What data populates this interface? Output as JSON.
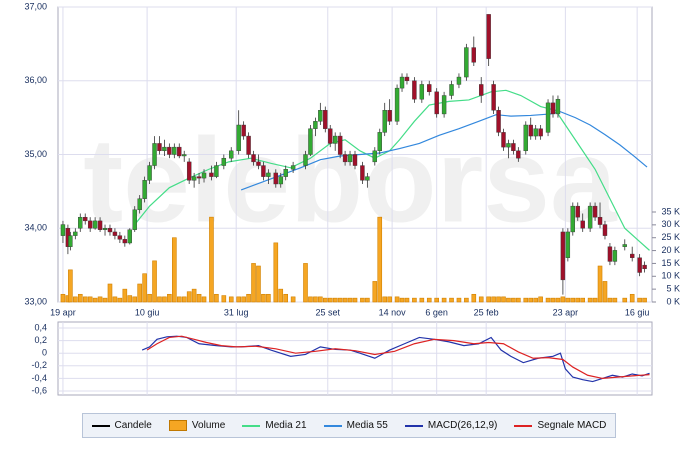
{
  "chart_data": {
    "type": "candlestick",
    "watermark": "teleborsa",
    "xlim": [
      0,
      240
    ],
    "xticks": [
      {
        "value": 2,
        "label": "19 apr"
      },
      {
        "value": 36,
        "label": "10 giu"
      },
      {
        "value": 72,
        "label": "31 lug"
      },
      {
        "value": 109,
        "label": "25 set"
      },
      {
        "value": 135,
        "label": "14 nov"
      },
      {
        "value": 153,
        "label": "6 gen"
      },
      {
        "value": 173,
        "label": "25 feb"
      },
      {
        "value": 205,
        "label": "23 apr"
      },
      {
        "value": 234,
        "label": "16 giu"
      }
    ],
    "ylim": [
      33,
      37
    ],
    "yticks": [
      {
        "value": 33,
        "label": "33,00"
      },
      {
        "value": 34,
        "label": "34,00"
      },
      {
        "value": 35,
        "label": "35,00"
      },
      {
        "value": 36,
        "label": "36,00"
      },
      {
        "value": 37,
        "label": "37,00"
      }
    ],
    "y2lim": [
      0,
      35000
    ],
    "y2ticks": [
      {
        "value": 0,
        "label": "0 K"
      },
      {
        "value": 5000,
        "label": "5 K"
      },
      {
        "value": 10000,
        "label": "10 K"
      },
      {
        "value": 15000,
        "label": "15 K"
      },
      {
        "value": 20000,
        "label": "20 K"
      },
      {
        "value": 25000,
        "label": "25 K"
      },
      {
        "value": 30000,
        "label": "30 K"
      },
      {
        "value": 35000,
        "label": "35 K"
      }
    ],
    "grid": true,
    "candles": {
      "name": "Candele",
      "up_color": "#33aa33",
      "down_color": "#a0102a",
      "x": [
        2,
        4,
        5,
        7,
        9,
        11,
        13,
        15,
        17,
        19,
        21,
        23,
        25,
        27,
        29,
        31,
        33,
        35,
        37,
        39,
        41,
        43,
        45,
        47,
        49,
        51,
        53,
        55,
        57,
        59,
        62,
        64,
        67,
        70,
        73,
        75,
        77,
        79,
        81,
        83,
        85,
        88,
        90,
        92,
        95,
        100,
        102,
        104,
        106,
        108,
        110,
        112,
        114,
        116,
        118,
        120,
        123,
        125,
        128,
        130,
        132,
        134,
        137,
        139,
        141,
        144,
        147,
        150,
        153,
        156,
        159,
        162,
        165,
        168,
        171,
        174,
        176,
        178,
        180,
        182,
        184,
        186,
        189,
        191,
        193,
        195,
        198,
        200,
        202,
        204,
        206,
        208,
        210,
        212,
        215,
        217,
        219,
        221,
        223,
        225,
        229,
        232,
        235,
        237
      ],
      "open": [
        33.9,
        34.0,
        33.75,
        33.9,
        34.0,
        34.15,
        34.1,
        34.0,
        34.1,
        33.98,
        34.0,
        33.95,
        33.9,
        33.85,
        33.8,
        33.98,
        34.25,
        34.4,
        34.65,
        34.85,
        35.15,
        35.05,
        35.1,
        35.0,
        35.1,
        34.98,
        34.9,
        34.65,
        34.7,
        34.68,
        34.75,
        34.7,
        34.85,
        34.95,
        35.05,
        35.4,
        35.25,
        35.0,
        34.9,
        34.85,
        34.7,
        34.75,
        34.6,
        34.7,
        34.8,
        34.85,
        35.0,
        35.35,
        35.45,
        35.6,
        35.35,
        35.15,
        35.25,
        35.0,
        34.9,
        35.0,
        34.85,
        34.65,
        34.9,
        35.05,
        35.3,
        35.6,
        35.45,
        35.9,
        36.05,
        36.0,
        35.75,
        35.95,
        35.85,
        35.55,
        35.8,
        35.95,
        36.05,
        36.45,
        35.95,
        36.9,
        35.95,
        35.6,
        35.3,
        35.1,
        35.15,
        35.05,
        35.05,
        35.4,
        35.25,
        35.35,
        35.3,
        35.7,
        35.55,
        33.95,
        33.6,
        33.95,
        34.3,
        34.1,
        34.0,
        34.3,
        34.15,
        34.05,
        33.75,
        33.55,
        33.75,
        33.65,
        33.6,
        33.5
      ],
      "high": [
        34.1,
        34.05,
        33.95,
        34.0,
        34.2,
        34.2,
        34.15,
        34.15,
        34.15,
        34.05,
        34.05,
        34.0,
        33.95,
        33.9,
        34.0,
        34.3,
        34.45,
        34.7,
        34.9,
        35.25,
        35.25,
        35.2,
        35.15,
        35.15,
        35.15,
        35.05,
        34.95,
        34.75,
        34.75,
        34.8,
        34.85,
        34.9,
        35.0,
        35.1,
        35.6,
        35.45,
        35.3,
        35.05,
        35.0,
        34.9,
        34.8,
        34.8,
        34.75,
        34.85,
        34.9,
        35.05,
        35.4,
        35.5,
        35.7,
        35.65,
        35.4,
        35.3,
        35.3,
        35.05,
        35.05,
        35.05,
        34.9,
        34.75,
        35.1,
        35.35,
        35.7,
        35.75,
        35.95,
        36.1,
        36.1,
        36.05,
        36.0,
        36.0,
        35.9,
        35.85,
        36.0,
        36.1,
        36.5,
        36.6,
        36.05,
        36.9,
        36.0,
        35.65,
        35.35,
        35.2,
        35.2,
        35.1,
        35.45,
        35.5,
        35.4,
        35.4,
        35.75,
        35.8,
        35.8,
        34.0,
        34.0,
        34.35,
        34.35,
        34.2,
        34.35,
        34.35,
        34.35,
        34.1,
        33.8,
        33.75,
        33.85,
        33.75,
        33.65,
        33.55
      ],
      "low": [
        33.8,
        33.65,
        33.7,
        33.85,
        33.95,
        34.05,
        33.95,
        33.98,
        33.95,
        33.9,
        33.9,
        33.85,
        33.8,
        33.75,
        33.78,
        33.95,
        34.2,
        34.35,
        34.6,
        34.8,
        35.0,
        34.98,
        34.95,
        34.95,
        34.95,
        34.9,
        34.6,
        34.55,
        34.6,
        34.62,
        34.65,
        34.68,
        34.8,
        34.9,
        35.0,
        35.2,
        34.95,
        34.85,
        34.8,
        34.65,
        34.6,
        34.55,
        34.55,
        34.65,
        34.75,
        34.8,
        34.98,
        35.25,
        35.4,
        35.3,
        35.1,
        35.05,
        34.95,
        34.85,
        34.85,
        34.8,
        34.6,
        34.55,
        34.85,
        35.0,
        35.25,
        35.4,
        35.4,
        35.85,
        35.95,
        35.7,
        35.7,
        35.8,
        35.5,
        35.5,
        35.75,
        35.9,
        36.0,
        36.2,
        35.7,
        36.2,
        35.55,
        35.25,
        35.05,
        34.95,
        35.0,
        34.9,
        35.0,
        35.2,
        35.2,
        35.2,
        35.25,
        35.5,
        35.5,
        33.1,
        33.55,
        33.9,
        34.1,
        33.95,
        33.95,
        34.1,
        34.0,
        33.85,
        33.5,
        33.5,
        33.7,
        33.55,
        33.35,
        33.4
      ],
      "close": [
        34.05,
        33.75,
        33.9,
        33.95,
        34.15,
        34.1,
        34.0,
        34.1,
        33.98,
        34.0,
        33.95,
        33.9,
        33.85,
        33.8,
        33.98,
        34.25,
        34.4,
        34.65,
        34.85,
        35.15,
        35.05,
        35.1,
        35.0,
        35.1,
        34.98,
        35.0,
        34.65,
        34.7,
        34.68,
        34.75,
        34.7,
        34.85,
        34.95,
        35.05,
        35.4,
        35.25,
        35.0,
        34.9,
        34.85,
        34.7,
        34.75,
        34.6,
        34.7,
        34.8,
        34.85,
        35.0,
        35.35,
        35.45,
        35.6,
        35.35,
        35.15,
        35.25,
        35.0,
        34.9,
        35.0,
        34.85,
        34.65,
        34.7,
        35.05,
        35.3,
        35.6,
        35.45,
        35.9,
        36.05,
        36.0,
        35.75,
        35.95,
        35.85,
        35.55,
        35.8,
        35.95,
        36.05,
        36.45,
        36.25,
        35.8,
        36.3,
        35.6,
        35.3,
        35.1,
        35.15,
        35.05,
        34.95,
        35.4,
        35.25,
        35.35,
        35.25,
        35.7,
        35.55,
        35.75,
        33.3,
        33.95,
        34.3,
        34.15,
        34.0,
        34.3,
        34.15,
        34.05,
        33.9,
        33.55,
        33.7,
        33.78,
        33.6,
        33.4,
        33.45
      ]
    },
    "volume": {
      "name": "Volume",
      "color": "#f5a623",
      "values": [
        3000,
        2500,
        12500,
        2000,
        3000,
        2000,
        2000,
        1500,
        2000,
        1500,
        7000,
        2000,
        1500,
        5000,
        2500,
        2000,
        7000,
        11000,
        3000,
        16000,
        2000,
        2000,
        3000,
        25000,
        2000,
        2000,
        4000,
        5000,
        3000,
        2000,
        33000,
        3000,
        2500,
        2000,
        2000,
        2000,
        3000,
        15000,
        14000,
        3000,
        3000,
        23000,
        5000,
        3000,
        2000,
        15000,
        2000,
        2000,
        2000,
        1500,
        1500,
        1500,
        1500,
        1500,
        1500,
        1500,
        1500,
        1500,
        8000,
        33000,
        2000,
        2000,
        2000,
        1500,
        1500,
        1500,
        1500,
        1500,
        1500,
        1500,
        1500,
        1500,
        1500,
        3000,
        2000,
        2000,
        2000,
        2000,
        2000,
        1500,
        1500,
        1500,
        1500,
        1500,
        1500,
        2000,
        1500,
        1500,
        1500,
        2000,
        1500,
        1500,
        1500,
        1500,
        1500,
        1500,
        14000,
        8000,
        1500,
        1500,
        1500,
        3000,
        1500,
        1500
      ]
    },
    "series": [
      {
        "name": "Media 21",
        "color": "#44dd88",
        "x": [
          31,
          37,
          45,
          53,
          61,
          69,
          78,
          86,
          94,
          102,
          110,
          116,
          122,
          128,
          134,
          138,
          144,
          150,
          158,
          166,
          175,
          181,
          187,
          195,
          201,
          205,
          211,
          217,
          223,
          229,
          235,
          239
        ],
        "values": [
          34.05,
          34.3,
          34.55,
          34.68,
          34.8,
          34.9,
          34.95,
          34.88,
          34.82,
          34.95,
          35.15,
          35.2,
          35.05,
          34.95,
          35.05,
          35.2,
          35.45,
          35.67,
          35.72,
          35.74,
          35.85,
          35.87,
          35.8,
          35.65,
          35.6,
          35.4,
          35.1,
          34.8,
          34.4,
          34.0,
          33.82,
          33.7
        ]
      },
      {
        "name": "Media 55",
        "color": "#3388dd",
        "x": [
          74,
          82,
          90,
          98,
          106,
          114,
          122,
          130,
          138,
          146,
          154,
          162,
          170,
          177,
          183,
          191,
          199,
          203,
          209,
          215,
          221,
          227,
          233,
          238
        ],
        "values": [
          34.52,
          34.62,
          34.72,
          34.82,
          34.93,
          34.98,
          35.0,
          35.02,
          35.08,
          35.15,
          35.26,
          35.35,
          35.45,
          35.54,
          35.52,
          35.53,
          35.55,
          35.58,
          35.5,
          35.4,
          35.27,
          35.13,
          34.97,
          34.83
        ]
      }
    ],
    "macd": {
      "ylim": [
        -0.6,
        0.4
      ],
      "yticks": [
        {
          "value": 0.4,
          "label": "0,4"
        },
        {
          "value": 0.2,
          "label": "0,2"
        },
        0,
        {
          "value": -0.2,
          "label": "-0,2"
        },
        {
          "value": -0.4,
          "label": "-0,4"
        },
        {
          "value": -0.6,
          "label": "-0,6"
        }
      ],
      "series": [
        {
          "name": "MACD(26,12,9)",
          "color": "#2233aa",
          "x": [
            34,
            37,
            40,
            44,
            48,
            52,
            57,
            64,
            70,
            74,
            81,
            86,
            94,
            100,
            106,
            112,
            118,
            122,
            128,
            134,
            140,
            146,
            152,
            158,
            164,
            170,
            175,
            179,
            183,
            188,
            194,
            200,
            203,
            205,
            208,
            212,
            216,
            220,
            224,
            228,
            232,
            236,
            239
          ],
          "values": [
            0.05,
            0.1,
            0.22,
            0.26,
            0.27,
            0.25,
            0.15,
            0.12,
            0.1,
            0.1,
            0.12,
            0.05,
            -0.05,
            -0.02,
            0.1,
            0.06,
            0.05,
            0.0,
            -0.08,
            0.05,
            0.15,
            0.25,
            0.22,
            0.18,
            0.12,
            0.15,
            0.25,
            0.05,
            -0.05,
            -0.15,
            -0.08,
            -0.05,
            0.0,
            -0.25,
            -0.38,
            -0.42,
            -0.45,
            -0.4,
            -0.35,
            -0.38,
            -0.33,
            -0.36,
            -0.32
          ]
        },
        {
          "name": "Segnale MACD",
          "color": "#dd2222",
          "x": [
            36,
            40,
            45,
            50,
            55,
            60,
            66,
            72,
            80,
            88,
            96,
            104,
            112,
            120,
            128,
            136,
            144,
            152,
            160,
            168,
            174,
            180,
            186,
            192,
            198,
            204,
            208,
            214,
            220,
            226,
            232,
            239
          ],
          "values": [
            0.05,
            0.15,
            0.25,
            0.27,
            0.22,
            0.17,
            0.12,
            0.1,
            0.11,
            0.07,
            0.0,
            0.03,
            0.07,
            0.04,
            -0.02,
            0.03,
            0.15,
            0.22,
            0.2,
            0.15,
            0.17,
            0.15,
            0.02,
            -0.08,
            -0.07,
            -0.1,
            -0.22,
            -0.35,
            -0.4,
            -0.38,
            -0.36,
            -0.34
          ]
        }
      ]
    }
  }
}
